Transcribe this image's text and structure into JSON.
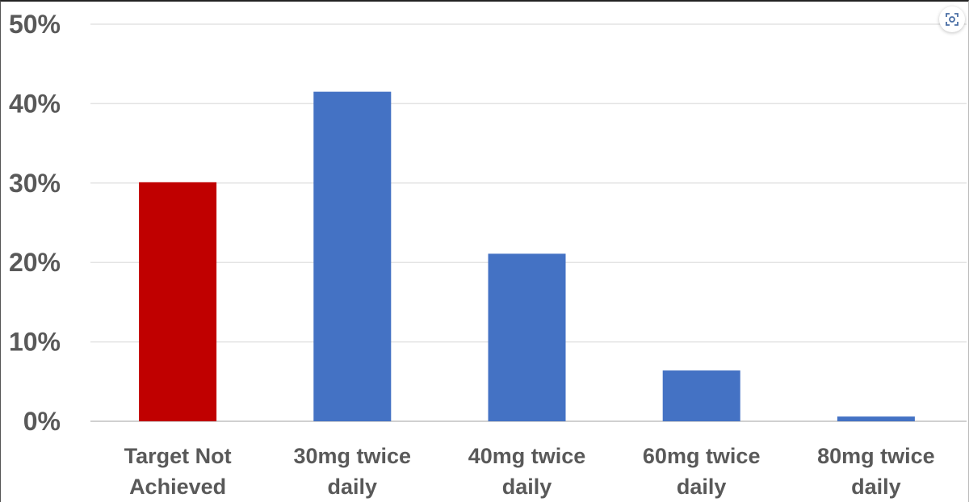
{
  "chart_data": {
    "type": "bar",
    "title": "",
    "xlabel": "",
    "ylabel": "",
    "categories": [
      [
        "Target Not",
        "Achieved"
      ],
      [
        "30mg twice",
        "daily"
      ],
      [
        "40mg twice",
        "daily"
      ],
      [
        "60mg twice",
        "daily"
      ],
      [
        "80mg twice",
        "daily"
      ]
    ],
    "values": [
      30.1,
      41.5,
      21.1,
      6.4,
      0.6
    ],
    "colors": [
      "#c00000",
      "#4472c4",
      "#4472c4",
      "#4472c4",
      "#4472c4"
    ],
    "ylim": [
      0,
      50
    ],
    "yticks": [
      "0%",
      "10%",
      "20%",
      "30%",
      "40%",
      "50%"
    ],
    "grid": true,
    "legend": "none"
  },
  "toolbar": {
    "expand_icon": "focus-expand-icon"
  }
}
